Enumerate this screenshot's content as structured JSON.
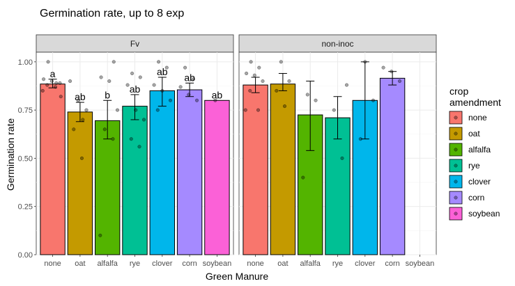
{
  "chart_data": {
    "type": "bar",
    "title": "Germination rate, up to 8 exp",
    "xlabel": "Green Manure",
    "ylabel": "Germination rate",
    "ylim": [
      0,
      1.05
    ],
    "yticks": [
      "0.00",
      "0.25",
      "0.50",
      "0.75",
      "1.00"
    ],
    "categories": [
      "none",
      "oat",
      "alfalfa",
      "rye",
      "clover",
      "corn",
      "soybean"
    ],
    "legend": {
      "title_lines": [
        "crop",
        "amendment"
      ],
      "placement": "right",
      "entries": [
        {
          "name": "none",
          "color": "#F8766D"
        },
        {
          "name": "oat",
          "color": "#C49A00"
        },
        {
          "name": "alfalfa",
          "color": "#53B400"
        },
        {
          "name": "rye",
          "color": "#00C094"
        },
        {
          "name": "clover",
          "color": "#00B6EB"
        },
        {
          "name": "corn",
          "color": "#A58AFF"
        },
        {
          "name": "soybean",
          "color": "#FB61D7"
        }
      ]
    },
    "grid": true,
    "panels": [
      {
        "name": "Fv",
        "bars": [
          {
            "category": "none",
            "value": 0.885,
            "err": [
              0.865,
              0.91
            ],
            "label": "a",
            "points": [
              0.85,
              0.87,
              0.88,
              0.89,
              0.9,
              0.91,
              0.89,
              1.0,
              0.82
            ]
          },
          {
            "category": "oat",
            "value": 0.74,
            "err": [
              0.69,
              0.79
            ],
            "label": "ab",
            "points": [
              0.5,
              0.65,
              0.75,
              0.8,
              0.9,
              0.7
            ]
          },
          {
            "category": "alfalfa",
            "value": 0.695,
            "err": [
              0.6,
              0.8
            ],
            "label": "b",
            "points": [
              0.1,
              0.6,
              0.65,
              0.75,
              0.9,
              0.92,
              1.0
            ]
          },
          {
            "category": "rye",
            "value": 0.77,
            "err": [
              0.7,
              0.83
            ],
            "label": "ab",
            "points": [
              0.56,
              0.6,
              0.7,
              0.75,
              0.88,
              0.92,
              0.94
            ]
          },
          {
            "category": "clover",
            "value": 0.85,
            "err": [
              0.77,
              0.92
            ],
            "label": "ab",
            "points": [
              0.75,
              0.8,
              0.85,
              0.88,
              0.97,
              1.0
            ]
          },
          {
            "category": "corn",
            "value": 0.855,
            "err": [
              0.82,
              0.89
            ],
            "label": "ab",
            "points": [
              0.8,
              0.83,
              0.87,
              0.91,
              0.97
            ]
          },
          {
            "category": "soybean",
            "value": 0.8,
            "err": null,
            "label": "ab",
            "points": [
              0.8
            ]
          }
        ]
      },
      {
        "name": "non-inoc",
        "bars": [
          {
            "category": "none",
            "value": 0.88,
            "err": [
              0.84,
              0.92
            ],
            "label": "",
            "points": [
              0.75,
              0.75,
              0.85,
              0.9,
              0.93,
              0.94,
              0.97,
              1.0
            ]
          },
          {
            "category": "oat",
            "value": 0.885,
            "err": [
              0.85,
              0.94
            ],
            "label": "",
            "points": [
              0.77,
              0.85,
              0.9,
              1.0
            ]
          },
          {
            "category": "alfalfa",
            "value": 0.725,
            "err": [
              0.54,
              0.9
            ],
            "label": "",
            "points": [
              0.4,
              0.8,
              0.83
            ]
          },
          {
            "category": "rye",
            "value": 0.71,
            "err": [
              0.6,
              0.82
            ],
            "label": "",
            "points": [
              0.5,
              0.75,
              0.88
            ]
          },
          {
            "category": "clover",
            "value": 0.8,
            "err": [
              0.6,
              1.0
            ],
            "label": "",
            "points": [
              0.6,
              0.8,
              1.0
            ]
          },
          {
            "category": "corn",
            "value": 0.915,
            "err": [
              0.88,
              0.95
            ],
            "label": "",
            "points": [
              0.9,
              0.95,
              0.97
            ]
          },
          {
            "category": "soybean",
            "value": null,
            "err": null,
            "label": "",
            "points": []
          }
        ]
      }
    ]
  }
}
